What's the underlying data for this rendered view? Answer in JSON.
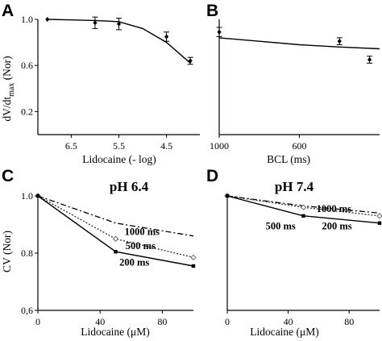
{
  "chart_data": [
    {
      "id": "A",
      "type": "line",
      "panel_label": "A",
      "title": "",
      "xlabel": "Lidocaine (- log)",
      "ylabel": "dV/dt",
      "ylabel_sub": "max",
      "ylabel_suffix": " (Nor)",
      "x_reversed": true,
      "xlim": [
        7.2,
        3.8
      ],
      "ylim": [
        0,
        1.0
      ],
      "xticks": [
        6.5,
        5.5,
        4.5
      ],
      "xtick_labels": [
        "6.5",
        "5.5",
        "4.5"
      ],
      "yticks": [
        0.2,
        0.6,
        1.0
      ],
      "ytick_labels": [
        "0.2",
        "0.6",
        "1.0"
      ],
      "series": [
        {
          "style": "solid",
          "x": [
            7,
            6.5,
            6,
            5.5,
            5,
            4.5,
            4
          ],
          "y": [
            1.0,
            0.995,
            0.99,
            0.98,
            0.92,
            0.8,
            0.62
          ]
        }
      ],
      "markers": [
        {
          "x": 7,
          "y": 1.0,
          "err": 0
        },
        {
          "x": 6,
          "y": 0.97,
          "err": 0.05
        },
        {
          "x": 5.5,
          "y": 0.96,
          "err": 0.05
        },
        {
          "x": 4.5,
          "y": 0.85,
          "err": 0.04
        },
        {
          "x": 4,
          "y": 0.64,
          "err": 0.03
        }
      ]
    },
    {
      "id": "B",
      "type": "line",
      "panel_label": "B",
      "title": "",
      "xlabel": "BCL (ms)",
      "ylabel": "",
      "x_reversed": true,
      "xlim": [
        1000,
        200
      ],
      "ylim": [
        0,
        1.0
      ],
      "xticks": [
        1000,
        600
      ],
      "xtick_labels": [
        "1000",
        "600"
      ],
      "yticks": [],
      "ytick_labels": [],
      "series": [
        {
          "style": "solid",
          "x": [
            1000,
            800,
            600,
            400,
            200
          ],
          "y": [
            0.84,
            0.81,
            0.78,
            0.76,
            0.745
          ]
        }
      ],
      "markers": [
        {
          "x": 1000,
          "y": 0.89,
          "err": 0.04
        },
        {
          "x": 400,
          "y": 0.81,
          "err": 0.03
        },
        {
          "x": 250,
          "y": 0.65,
          "err": 0.03
        }
      ]
    },
    {
      "id": "C",
      "type": "line",
      "panel_label": "C",
      "title": "pH 6.4",
      "xlabel": "Lidocaine (μM)",
      "ylabel": "CV (Nor)",
      "xlim": [
        0,
        100
      ],
      "ylim": [
        0.6,
        1.0
      ],
      "xticks": [
        0,
        40,
        80
      ],
      "xtick_labels": [
        "0",
        "40",
        "80"
      ],
      "yticks": [
        0.6,
        0.8,
        1.0
      ],
      "ytick_labels": [
        "0,6",
        "0.8",
        "1.0"
      ],
      "series": [
        {
          "name": "1000 ms",
          "style": "dashdot",
          "marker": "none",
          "x": [
            0,
            50,
            100
          ],
          "y": [
            1.0,
            0.905,
            0.86
          ]
        },
        {
          "name": "500 ms",
          "style": "dotted",
          "marker": "diamond",
          "x": [
            0,
            50,
            100
          ],
          "y": [
            1.0,
            0.85,
            0.785
          ]
        },
        {
          "name": "200 ms",
          "style": "solid",
          "marker": "square",
          "x": [
            0,
            50,
            100
          ],
          "y": [
            1.0,
            0.805,
            0.755
          ]
        }
      ],
      "labels": [
        {
          "text": "1000 ms",
          "x": 67,
          "y": 0.875
        },
        {
          "text": "500 ms",
          "x": 66,
          "y": 0.825
        },
        {
          "text": "200 ms",
          "x": 62,
          "y": 0.768
        }
      ]
    },
    {
      "id": "D",
      "type": "line",
      "panel_label": "D",
      "title": "pH 7.4",
      "xlabel": "Lidocaine (μM)",
      "ylabel": "",
      "xlim": [
        0,
        100
      ],
      "ylim": [
        0.6,
        1.0
      ],
      "xticks": [
        0,
        40,
        80
      ],
      "xtick_labels": [
        "0",
        "40",
        "80"
      ],
      "yticks": [],
      "ytick_labels": [],
      "series": [
        {
          "name": "1000 ms",
          "style": "dashdot",
          "marker": "none",
          "x": [
            0,
            50,
            100
          ],
          "y": [
            1.0,
            0.965,
            0.94
          ]
        },
        {
          "name": "500 ms",
          "style": "dotted",
          "marker": "diamond",
          "x": [
            0,
            50,
            100
          ],
          "y": [
            1.0,
            0.96,
            0.93
          ]
        },
        {
          "name": "200 ms",
          "style": "solid",
          "marker": "square",
          "x": [
            0,
            50,
            100
          ],
          "y": [
            1.0,
            0.93,
            0.905
          ]
        }
      ],
      "labels": [
        {
          "text": "1000 ms",
          "x": 70,
          "y": 0.955
        },
        {
          "text": "500 ms",
          "x": 35,
          "y": 0.895
        },
        {
          "text": "200 ms",
          "x": 72,
          "y": 0.895
        }
      ]
    }
  ]
}
